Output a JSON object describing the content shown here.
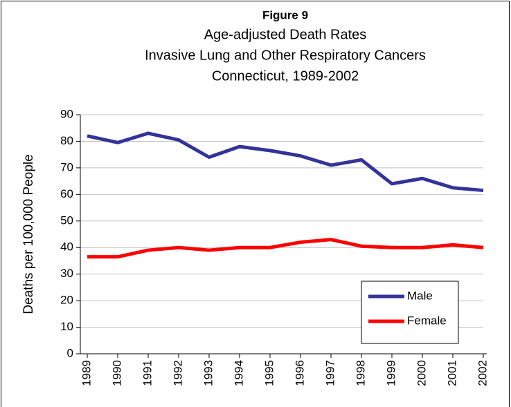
{
  "chart_data": {
    "type": "line",
    "title": "Figure 9",
    "subtitle": [
      "Age-adjusted Death Rates",
      "Invasive Lung and Other Respiratory Cancers",
      "Connecticut, 1989-2002"
    ],
    "y_label": "Deaths per 100,000 People",
    "categories": [
      "1989",
      "1990",
      "1991",
      "1992",
      "1993",
      "1994",
      "1995",
      "1996",
      "1997",
      "1998",
      "1999",
      "2000",
      "2001",
      "2002"
    ],
    "series": [
      {
        "name": "Male",
        "color": "#333399",
        "values": [
          82,
          79.5,
          83,
          80.5,
          74,
          78,
          76.5,
          74.5,
          71,
          73,
          64,
          66,
          62.5,
          61.5
        ]
      },
      {
        "name": "Female",
        "color": "#ff0000",
        "values": [
          36.5,
          36.5,
          39,
          40,
          39,
          40,
          40,
          42,
          43,
          40.5,
          40,
          40,
          41,
          40
        ]
      }
    ],
    "ylim": [
      0,
      90
    ],
    "yticks": [
      0,
      10,
      20,
      30,
      40,
      50,
      60,
      70,
      80,
      90
    ],
    "grid": true,
    "legend": "lower-right"
  }
}
